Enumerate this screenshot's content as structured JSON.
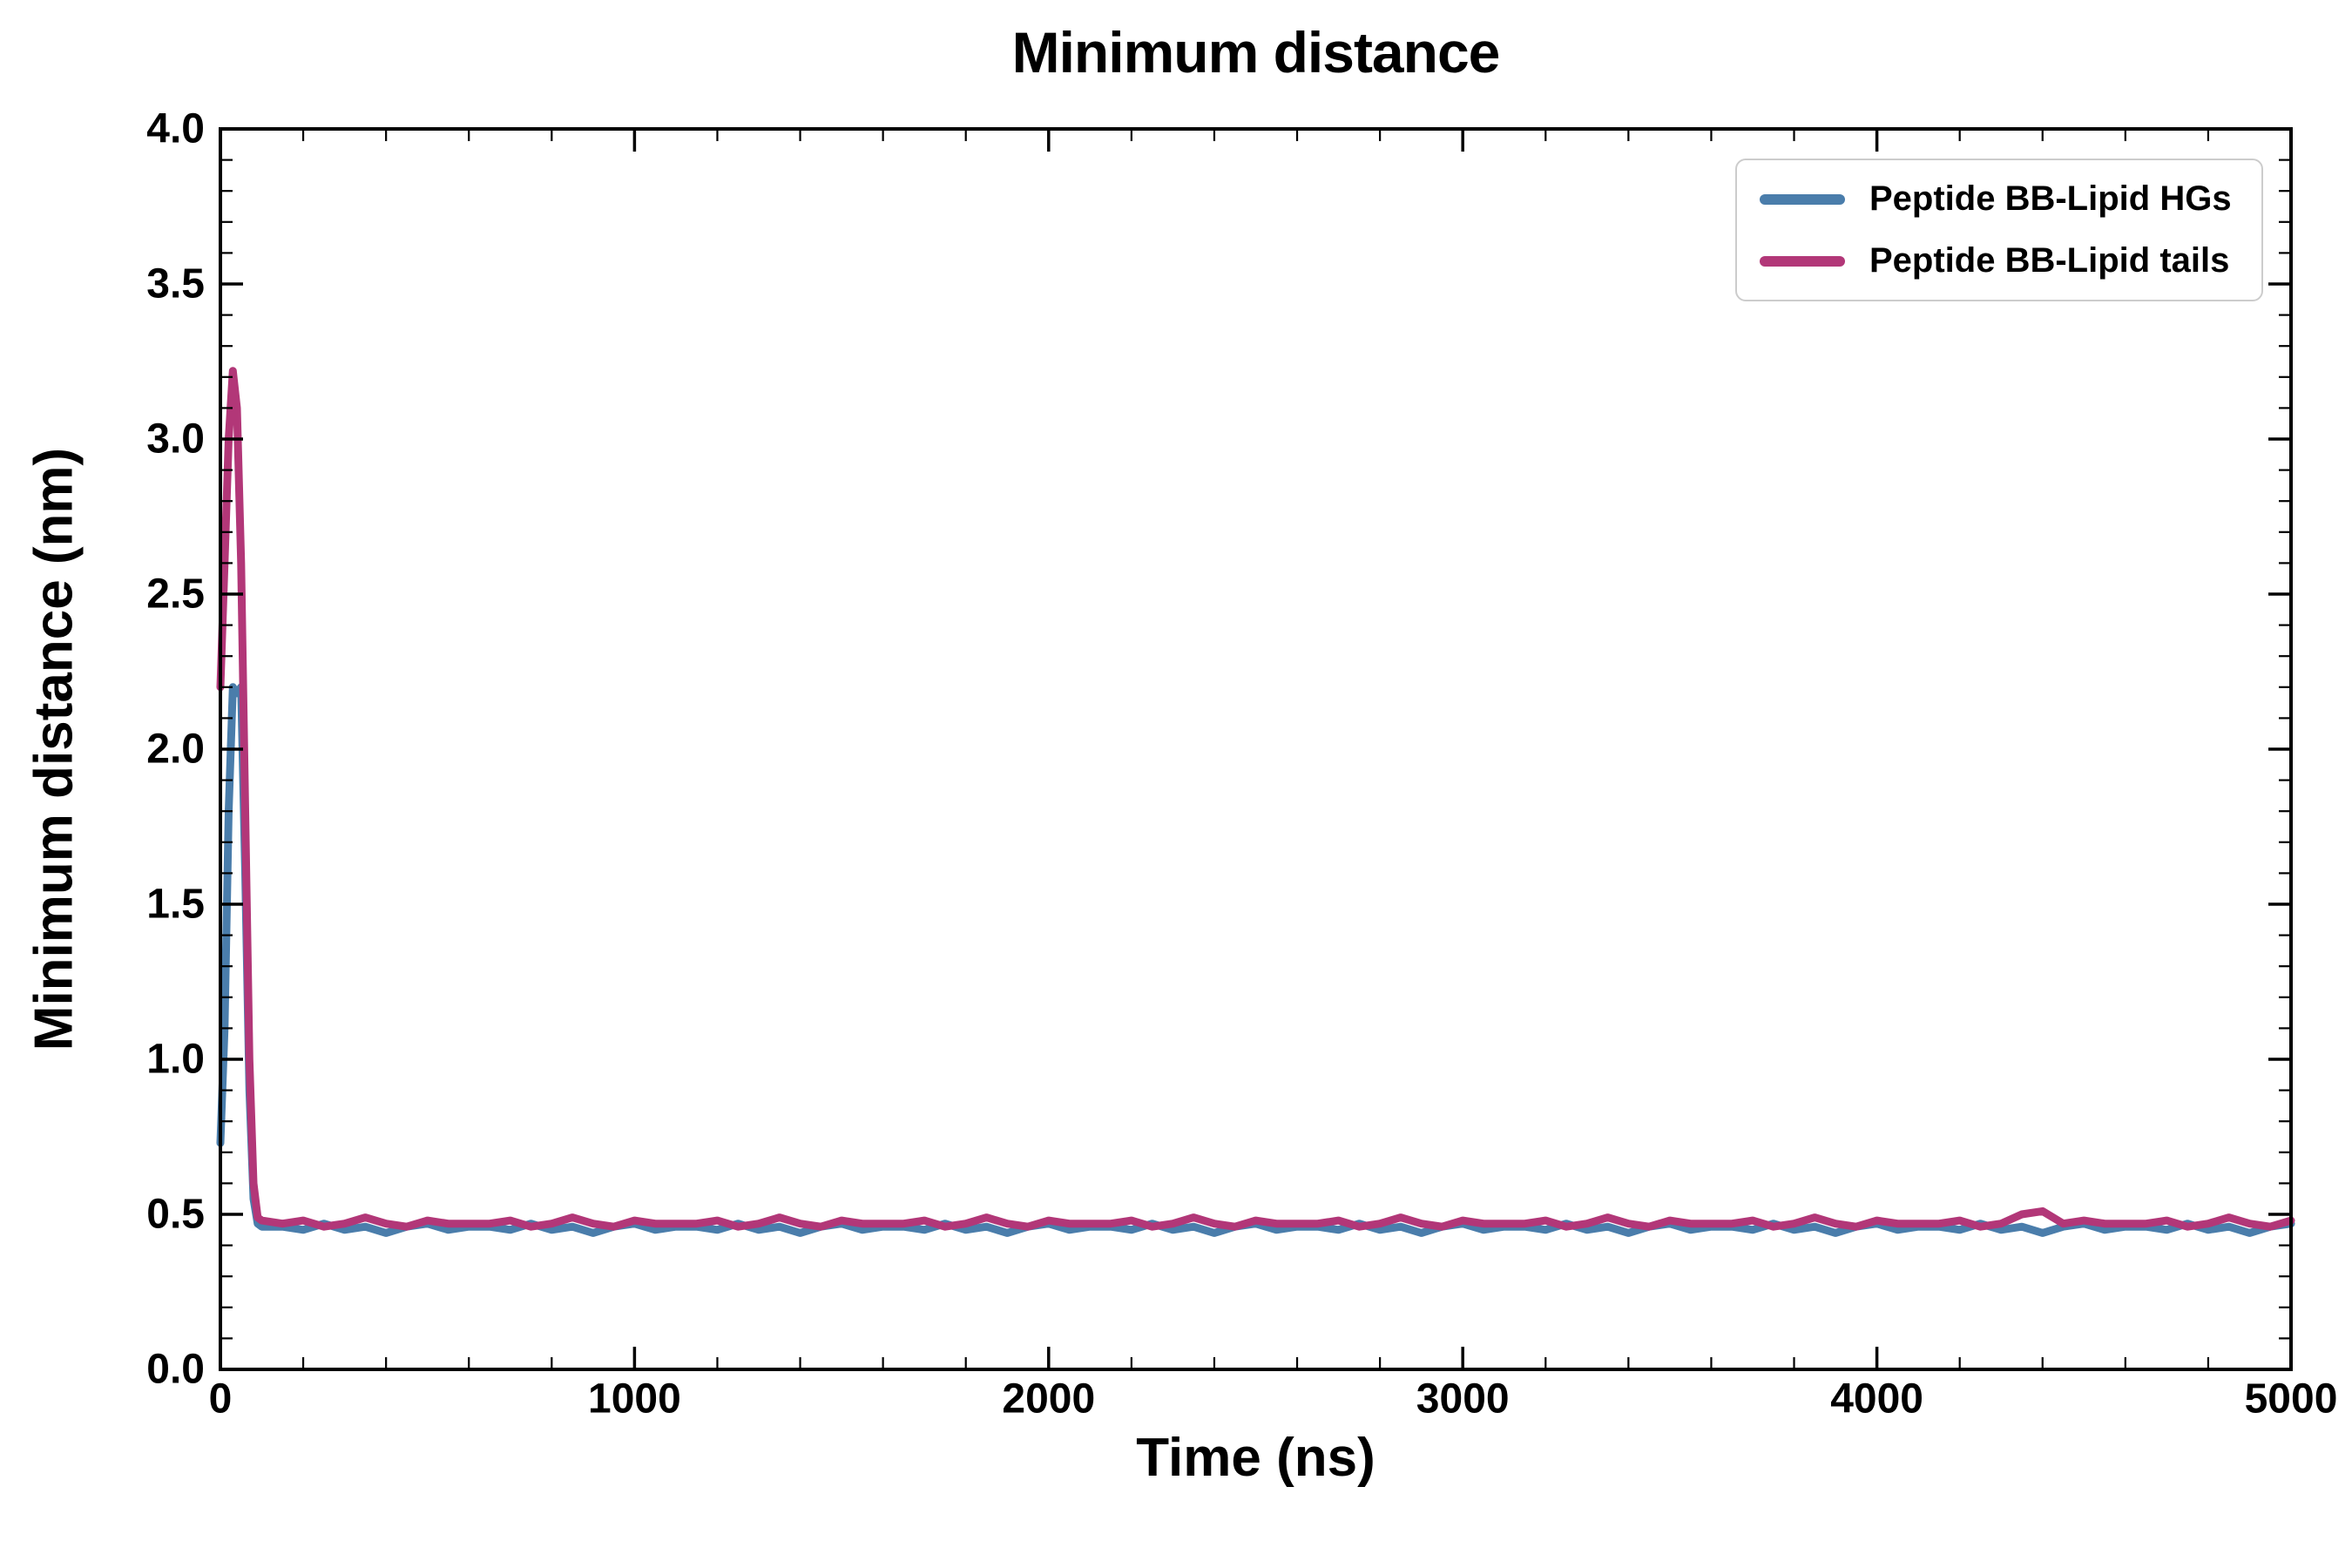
{
  "chart_data": {
    "type": "line",
    "title": "Minimum distance",
    "xlabel": "Time (ns)",
    "ylabel": "Minimum distance (nm)",
    "xlim": [
      0,
      5000
    ],
    "ylim": [
      0.0,
      4.0
    ],
    "xticks": [
      0,
      1000,
      2000,
      3000,
      4000,
      5000
    ],
    "yticks": [
      0.0,
      0.5,
      1.0,
      1.5,
      2.0,
      2.5,
      3.0,
      3.5,
      4.0
    ],
    "x_minor_step": 200,
    "y_minor_step": 0.1,
    "grid": false,
    "legend_position": "upper right",
    "x": [
      0,
      10,
      20,
      30,
      40,
      50,
      60,
      70,
      80,
      90,
      100,
      150,
      200,
      250,
      300,
      350,
      400,
      450,
      500,
      550,
      600,
      650,
      700,
      750,
      800,
      850,
      900,
      950,
      1000,
      1050,
      1100,
      1150,
      1200,
      1250,
      1300,
      1350,
      1400,
      1450,
      1500,
      1550,
      1600,
      1650,
      1700,
      1750,
      1800,
      1850,
      1900,
      1950,
      2000,
      2050,
      2100,
      2150,
      2200,
      2250,
      2300,
      2350,
      2400,
      2450,
      2500,
      2550,
      2600,
      2650,
      2700,
      2750,
      2800,
      2850,
      2900,
      2950,
      3000,
      3050,
      3100,
      3150,
      3200,
      3250,
      3300,
      3350,
      3400,
      3450,
      3500,
      3550,
      3600,
      3650,
      3700,
      3750,
      3800,
      3850,
      3900,
      3950,
      4000,
      4050,
      4100,
      4150,
      4200,
      4250,
      4300,
      4350,
      4400,
      4450,
      4500,
      4550,
      4600,
      4650,
      4700,
      4750,
      4800,
      4850,
      4900,
      4950,
      5000
    ],
    "series": [
      {
        "name": "Peptide BB-Lipid HGs",
        "color": "#4a7dab",
        "values": [
          0.73,
          1.1,
          1.8,
          2.2,
          2.18,
          2.2,
          1.6,
          0.9,
          0.55,
          0.47,
          0.46,
          0.46,
          0.45,
          0.47,
          0.45,
          0.46,
          0.44,
          0.46,
          0.47,
          0.45,
          0.46,
          0.46,
          0.45,
          0.47,
          0.45,
          0.46,
          0.44,
          0.46,
          0.47,
          0.45,
          0.46,
          0.46,
          0.45,
          0.47,
          0.45,
          0.46,
          0.44,
          0.46,
          0.47,
          0.45,
          0.46,
          0.46,
          0.45,
          0.47,
          0.45,
          0.46,
          0.44,
          0.46,
          0.47,
          0.45,
          0.46,
          0.46,
          0.45,
          0.47,
          0.45,
          0.46,
          0.44,
          0.46,
          0.47,
          0.45,
          0.46,
          0.46,
          0.45,
          0.47,
          0.45,
          0.46,
          0.44,
          0.46,
          0.47,
          0.45,
          0.46,
          0.46,
          0.45,
          0.47,
          0.45,
          0.46,
          0.44,
          0.46,
          0.47,
          0.45,
          0.46,
          0.46,
          0.45,
          0.47,
          0.45,
          0.46,
          0.44,
          0.46,
          0.47,
          0.45,
          0.46,
          0.46,
          0.45,
          0.47,
          0.45,
          0.46,
          0.44,
          0.46,
          0.47,
          0.45,
          0.46,
          0.46,
          0.45,
          0.47,
          0.45,
          0.46,
          0.44,
          0.46,
          0.47
        ]
      },
      {
        "name": "Peptide BB-Lipid tails",
        "color": "#b23778",
        "values": [
          2.2,
          2.6,
          3.0,
          3.22,
          3.1,
          2.6,
          1.8,
          1.0,
          0.6,
          0.49,
          0.48,
          0.47,
          0.48,
          0.46,
          0.47,
          0.49,
          0.47,
          0.46,
          0.48,
          0.47,
          0.47,
          0.47,
          0.48,
          0.46,
          0.47,
          0.49,
          0.47,
          0.46,
          0.48,
          0.47,
          0.47,
          0.47,
          0.48,
          0.46,
          0.47,
          0.49,
          0.47,
          0.46,
          0.48,
          0.47,
          0.47,
          0.47,
          0.48,
          0.46,
          0.47,
          0.49,
          0.47,
          0.46,
          0.48,
          0.47,
          0.47,
          0.47,
          0.48,
          0.46,
          0.47,
          0.49,
          0.47,
          0.46,
          0.48,
          0.47,
          0.47,
          0.47,
          0.48,
          0.46,
          0.47,
          0.49,
          0.47,
          0.46,
          0.48,
          0.47,
          0.47,
          0.47,
          0.48,
          0.46,
          0.47,
          0.49,
          0.47,
          0.46,
          0.48,
          0.47,
          0.47,
          0.47,
          0.48,
          0.46,
          0.47,
          0.49,
          0.47,
          0.46,
          0.48,
          0.47,
          0.47,
          0.47,
          0.48,
          0.46,
          0.47,
          0.5,
          0.51,
          0.47,
          0.48,
          0.47,
          0.47,
          0.47,
          0.48,
          0.46,
          0.47,
          0.49,
          0.47,
          0.46,
          0.48
        ]
      }
    ]
  }
}
